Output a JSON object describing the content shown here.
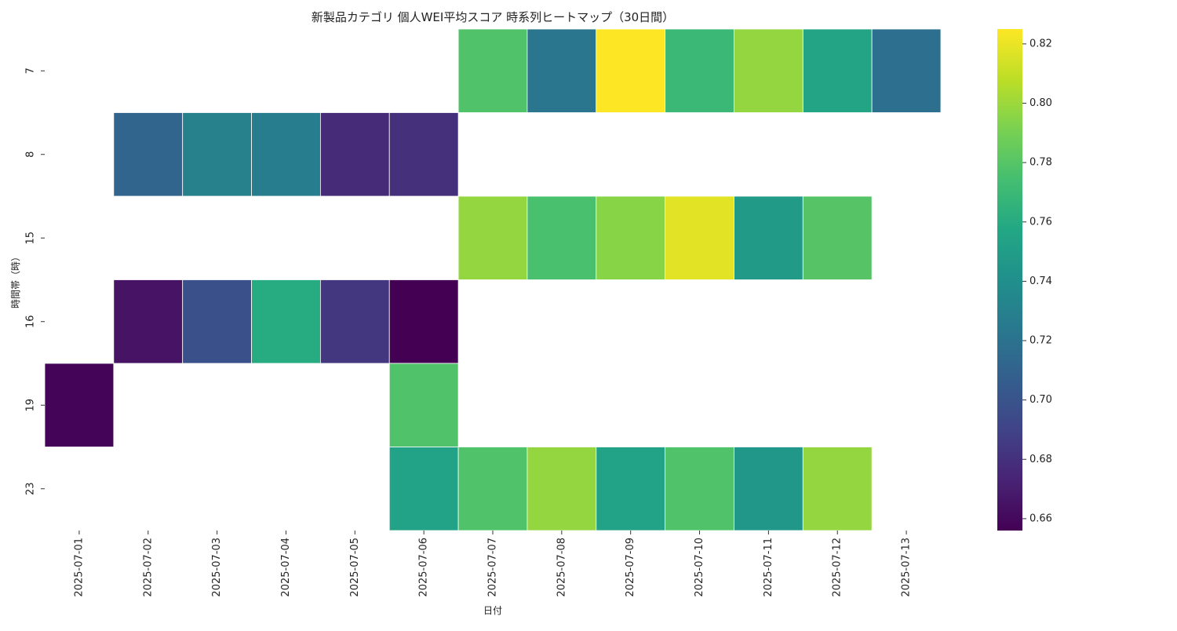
{
  "chart_data": {
    "type": "heatmap",
    "title": "新製品カテゴリ 個人WEI平均スコア 時系列ヒートマップ（30日間）",
    "xlabel": "日付",
    "ylabel": "時間帯（時）",
    "x_categories": [
      "2025-07-01",
      "2025-07-02",
      "2025-07-03",
      "2025-07-04",
      "2025-07-05",
      "2025-07-06",
      "2025-07-07",
      "2025-07-08",
      "2025-07-09",
      "2025-07-10",
      "2025-07-11",
      "2025-07-12",
      "2025-07-13"
    ],
    "y_categories": [
      "7",
      "8",
      "15",
      "16",
      "19",
      "23"
    ],
    "values": [
      [
        null,
        null,
        null,
        null,
        null,
        null,
        0.778,
        0.722,
        0.825,
        0.77,
        0.798,
        0.755,
        0.718
      ],
      [
        null,
        0.711,
        0.73,
        0.727,
        0.677,
        0.68,
        null,
        null,
        null,
        null,
        null,
        null,
        null
      ],
      [
        null,
        null,
        null,
        null,
        null,
        null,
        0.798,
        0.776,
        0.795,
        0.818,
        0.748,
        0.78,
        null
      ],
      [
        null,
        0.665,
        0.698,
        0.76,
        0.684,
        0.656,
        null,
        null,
        null,
        null,
        null,
        null,
        null
      ],
      [
        0.658,
        null,
        null,
        null,
        null,
        0.778,
        null,
        null,
        null,
        null,
        null,
        null,
        null
      ],
      [
        null,
        null,
        null,
        null,
        null,
        0.754,
        0.778,
        0.798,
        0.754,
        0.778,
        0.746,
        0.798,
        null
      ]
    ],
    "colormap": "viridis",
    "colorbar": {
      "min": 0.656,
      "max": 0.825,
      "ticks": [
        "0.66",
        "0.68",
        "0.70",
        "0.72",
        "0.74",
        "0.76",
        "0.78",
        "0.80",
        "0.82"
      ]
    },
    "grid": false,
    "cell_border_color": "#ffffff"
  }
}
